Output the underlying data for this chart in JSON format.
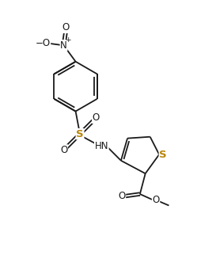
{
  "bg_color": "#ffffff",
  "line_color": "#1a1a1a",
  "s_color": "#b8860b",
  "bond_lw": 1.3,
  "fig_width": 2.73,
  "fig_height": 3.22,
  "dpi": 100,
  "xlim": [
    0,
    10
  ],
  "ylim": [
    0,
    11.8
  ]
}
